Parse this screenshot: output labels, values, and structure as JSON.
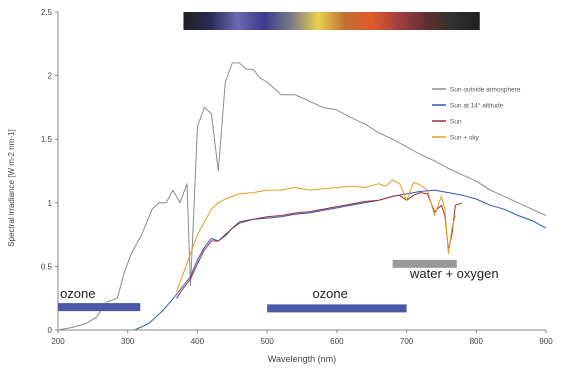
{
  "chart_data": {
    "type": "line",
    "xlabel": "Wavelength (nm)",
    "ylabel": "Spectral irradiance [W m-2 nm-1]",
    "xlim": [
      200,
      900
    ],
    "ylim": [
      0,
      2.5
    ],
    "x_ticks": [
      "200",
      "300",
      "400",
      "500",
      "600",
      "700",
      "800",
      "900"
    ],
    "y_ticks": [
      "0",
      "0.5",
      "1",
      "1.5",
      "2",
      "2.5"
    ],
    "grid": false,
    "legend_position": "right",
    "spectrum_bar": {
      "x_range": [
        380,
        805
      ],
      "colors": [
        "#202020",
        "#2a2a55",
        "#6a6ab0",
        "#3a3a8a",
        "#7a7a88",
        "#e8d050",
        "#c07030",
        "#e05a2a",
        "#a04040",
        "#603030",
        "#303030",
        "#202020"
      ]
    },
    "series": [
      {
        "name": "Sun outside atmosphere",
        "color": "#8c8c8c",
        "x": [
          200,
          220,
          240,
          255,
          270,
          285,
          295,
          305,
          320,
          335,
          345,
          355,
          365,
          375,
          385,
          390,
          395,
          400,
          410,
          420,
          430,
          440,
          450,
          460,
          470,
          480,
          490,
          500,
          510,
          520,
          540,
          560,
          580,
          600,
          620,
          640,
          660,
          680,
          700,
          720,
          740,
          760,
          780,
          800,
          820,
          840,
          860,
          880,
          900
        ],
        "y": [
          0.0,
          0.02,
          0.05,
          0.1,
          0.22,
          0.25,
          0.45,
          0.6,
          0.75,
          0.95,
          1.0,
          1.0,
          1.1,
          1.0,
          1.15,
          0.35,
          0.95,
          1.6,
          1.75,
          1.7,
          1.25,
          1.95,
          2.1,
          2.1,
          2.05,
          2.05,
          1.98,
          1.95,
          1.9,
          1.85,
          1.85,
          1.8,
          1.75,
          1.73,
          1.67,
          1.62,
          1.55,
          1.5,
          1.44,
          1.38,
          1.33,
          1.27,
          1.22,
          1.17,
          1.1,
          1.05,
          1.0,
          0.95,
          0.9
        ]
      },
      {
        "name": "Sun at 14° altitude",
        "color": "#3355bb",
        "x": [
          310,
          330,
          350,
          370,
          380,
          390,
          400,
          410,
          420,
          430,
          440,
          450,
          460,
          480,
          500,
          520,
          540,
          560,
          580,
          600,
          620,
          640,
          660,
          680,
          700,
          720,
          740,
          760,
          780,
          800,
          820,
          840,
          860,
          880,
          900
        ],
        "y": [
          0.0,
          0.05,
          0.15,
          0.28,
          0.35,
          0.42,
          0.55,
          0.65,
          0.72,
          0.7,
          0.75,
          0.8,
          0.85,
          0.87,
          0.88,
          0.89,
          0.91,
          0.92,
          0.94,
          0.96,
          0.98,
          1.0,
          1.02,
          1.05,
          1.07,
          1.09,
          1.1,
          1.08,
          1.06,
          1.03,
          0.98,
          0.95,
          0.9,
          0.86,
          0.8
        ]
      },
      {
        "name": "Sun",
        "color": "#a03030",
        "x": [
          370,
          380,
          390,
          400,
          410,
          420,
          430,
          440,
          450,
          460,
          480,
          500,
          520,
          540,
          560,
          580,
          600,
          620,
          640,
          660,
          680,
          690,
          700,
          710,
          720,
          730,
          740,
          750,
          755,
          760,
          765,
          770,
          780
        ],
        "y": [
          0.25,
          0.33,
          0.4,
          0.52,
          0.63,
          0.7,
          0.7,
          0.74,
          0.8,
          0.84,
          0.87,
          0.89,
          0.9,
          0.92,
          0.93,
          0.95,
          0.97,
          0.99,
          1.01,
          1.02,
          1.05,
          1.06,
          1.02,
          1.06,
          1.08,
          1.07,
          0.93,
          0.98,
          0.9,
          0.63,
          0.75,
          0.98,
          1.0
        ]
      },
      {
        "name": "Sun + sky",
        "color": "#e0a020",
        "x": [
          370,
          380,
          390,
          400,
          410,
          420,
          430,
          440,
          450,
          460,
          480,
          500,
          520,
          540,
          560,
          580,
          600,
          620,
          640,
          660,
          670,
          680,
          690,
          700,
          710,
          720,
          730,
          740,
          750,
          755,
          760,
          765,
          770
        ],
        "y": [
          0.3,
          0.45,
          0.6,
          0.75,
          0.85,
          0.95,
          1.0,
          1.03,
          1.05,
          1.07,
          1.08,
          1.1,
          1.1,
          1.12,
          1.1,
          1.11,
          1.12,
          1.13,
          1.12,
          1.15,
          1.13,
          1.18,
          1.15,
          1.02,
          1.16,
          1.14,
          1.1,
          0.9,
          1.05,
          0.95,
          0.6,
          0.8,
          0.9
        ]
      }
    ],
    "annotations": [
      {
        "text": "ozone",
        "x_range": [
          200,
          318
        ],
        "y": 0.18,
        "color": "#4a5aa8",
        "label_x": 203,
        "label_y": 0.25
      },
      {
        "text": "ozone",
        "x_range": [
          500,
          700
        ],
        "y": 0.17,
        "color": "#4a5aa8",
        "label_x": 565,
        "label_y": 0.25
      },
      {
        "text": "water + oxygen",
        "x_range": [
          680,
          772
        ],
        "y": 0.52,
        "color": "#999999",
        "label_x": 705,
        "label_y": 0.41
      }
    ]
  }
}
